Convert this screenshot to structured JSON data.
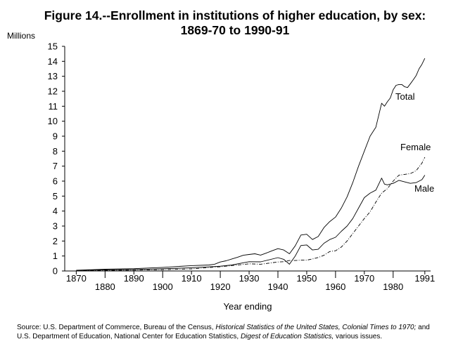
{
  "chart_data": {
    "type": "line",
    "title_line1": "Figure 14.--Enrollment in institutions of higher education, by sex:",
    "title_line2": "1869-70 to 1990-91",
    "ylabel": "Millions",
    "xlabel": "Year ending",
    "ylim": [
      0,
      15
    ],
    "xlim": [
      1866,
      1993
    ],
    "y_ticks": [
      0,
      1,
      2,
      3,
      4,
      5,
      6,
      7,
      8,
      9,
      10,
      11,
      12,
      13,
      14,
      15
    ],
    "x_ticks": [
      1870,
      1880,
      1890,
      1900,
      1910,
      1920,
      1930,
      1940,
      1950,
      1960,
      1970,
      1980,
      1991
    ],
    "x_tick_labels": [
      "1870",
      "1880",
      "1890",
      "1900",
      "1910",
      "1920",
      "1930",
      "1940",
      "1950",
      "1960",
      "1970",
      "1980",
      "1991"
    ],
    "series": [
      {
        "name": "Total",
        "style": "solid",
        "points": [
          [
            1870,
            0.052
          ],
          [
            1880,
            0.116
          ],
          [
            1890,
            0.157
          ],
          [
            1900,
            0.238
          ],
          [
            1910,
            0.355
          ],
          [
            1916,
            0.4
          ],
          [
            1918,
            0.45
          ],
          [
            1920,
            0.6
          ],
          [
            1922,
            0.68
          ],
          [
            1924,
            0.8
          ],
          [
            1926,
            0.92
          ],
          [
            1928,
            1.05
          ],
          [
            1930,
            1.1
          ],
          [
            1932,
            1.15
          ],
          [
            1934,
            1.06
          ],
          [
            1936,
            1.2
          ],
          [
            1938,
            1.35
          ],
          [
            1940,
            1.49
          ],
          [
            1942,
            1.4
          ],
          [
            1944,
            1.15
          ],
          [
            1946,
            1.68
          ],
          [
            1948,
            2.4
          ],
          [
            1950,
            2.45
          ],
          [
            1952,
            2.1
          ],
          [
            1954,
            2.3
          ],
          [
            1956,
            2.9
          ],
          [
            1958,
            3.3
          ],
          [
            1960,
            3.6
          ],
          [
            1962,
            4.2
          ],
          [
            1964,
            4.95
          ],
          [
            1966,
            5.9
          ],
          [
            1968,
            7.0
          ],
          [
            1970,
            8.0
          ],
          [
            1972,
            9.0
          ],
          [
            1974,
            9.6
          ],
          [
            1976,
            11.2
          ],
          [
            1977,
            11.0
          ],
          [
            1978,
            11.3
          ],
          [
            1979,
            11.55
          ],
          [
            1980,
            12.1
          ],
          [
            1981,
            12.4
          ],
          [
            1982,
            12.45
          ],
          [
            1983,
            12.45
          ],
          [
            1984,
            12.3
          ],
          [
            1985,
            12.25
          ],
          [
            1986,
            12.5
          ],
          [
            1987,
            12.77
          ],
          [
            1988,
            13.05
          ],
          [
            1989,
            13.5
          ],
          [
            1990,
            13.8
          ],
          [
            1991,
            14.2
          ]
        ]
      },
      {
        "name": "Female",
        "style": "dashdot",
        "points": [
          [
            1870,
            0.011
          ],
          [
            1880,
            0.04
          ],
          [
            1890,
            0.056
          ],
          [
            1900,
            0.085
          ],
          [
            1910,
            0.14
          ],
          [
            1920,
            0.28
          ],
          [
            1930,
            0.48
          ],
          [
            1934,
            0.45
          ],
          [
            1940,
            0.6
          ],
          [
            1942,
            0.62
          ],
          [
            1944,
            0.7
          ],
          [
            1946,
            0.7
          ],
          [
            1948,
            0.72
          ],
          [
            1950,
            0.72
          ],
          [
            1952,
            0.8
          ],
          [
            1954,
            0.9
          ],
          [
            1956,
            1.05
          ],
          [
            1958,
            1.3
          ],
          [
            1960,
            1.35
          ],
          [
            1962,
            1.6
          ],
          [
            1964,
            2.0
          ],
          [
            1966,
            2.5
          ],
          [
            1968,
            3.0
          ],
          [
            1970,
            3.5
          ],
          [
            1972,
            3.95
          ],
          [
            1974,
            4.6
          ],
          [
            1976,
            5.2
          ],
          [
            1978,
            5.5
          ],
          [
            1980,
            6.0
          ],
          [
            1982,
            6.4
          ],
          [
            1984,
            6.45
          ],
          [
            1986,
            6.5
          ],
          [
            1988,
            6.7
          ],
          [
            1990,
            7.2
          ],
          [
            1991,
            7.6
          ]
        ]
      },
      {
        "name": "Male",
        "style": "solid",
        "points": [
          [
            1870,
            0.041
          ],
          [
            1880,
            0.077
          ],
          [
            1890,
            0.1
          ],
          [
            1900,
            0.152
          ],
          [
            1910,
            0.215
          ],
          [
            1920,
            0.32
          ],
          [
            1924,
            0.4
          ],
          [
            1928,
            0.55
          ],
          [
            1930,
            0.62
          ],
          [
            1934,
            0.61
          ],
          [
            1940,
            0.89
          ],
          [
            1942,
            0.78
          ],
          [
            1944,
            0.45
          ],
          [
            1946,
            1.0
          ],
          [
            1948,
            1.7
          ],
          [
            1950,
            1.74
          ],
          [
            1952,
            1.4
          ],
          [
            1954,
            1.45
          ],
          [
            1956,
            1.85
          ],
          [
            1958,
            2.1
          ],
          [
            1960,
            2.25
          ],
          [
            1962,
            2.65
          ],
          [
            1964,
            3.0
          ],
          [
            1966,
            3.5
          ],
          [
            1968,
            4.2
          ],
          [
            1970,
            4.9
          ],
          [
            1972,
            5.2
          ],
          [
            1974,
            5.4
          ],
          [
            1976,
            6.2
          ],
          [
            1977,
            5.8
          ],
          [
            1978,
            5.75
          ],
          [
            1980,
            5.85
          ],
          [
            1982,
            6.05
          ],
          [
            1984,
            5.95
          ],
          [
            1986,
            5.85
          ],
          [
            1988,
            5.9
          ],
          [
            1990,
            6.1
          ],
          [
            1991,
            6.4
          ]
        ]
      }
    ]
  },
  "source": {
    "line1_prefix": "Source:  U.S. Department of Commerce, Bureau of the Census, ",
    "line1_italic": "Historical Statistics of the United States, Colonial Times to 1970;",
    "line1_suffix": "  and",
    "line2_prefix": "U.S. Department of Education, National Center for Education Statistics, ",
    "line2_italic": "Digest of Education Statistics,",
    "line2_suffix": "  various issues."
  }
}
